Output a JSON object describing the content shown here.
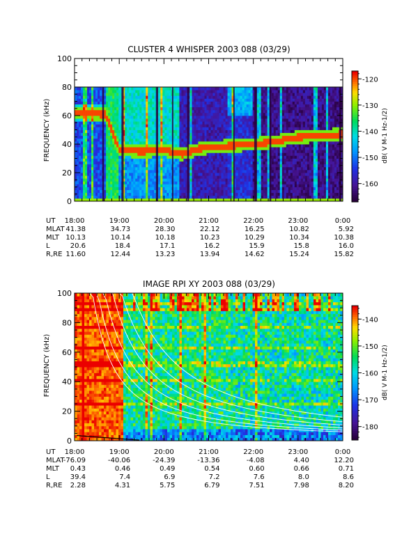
{
  "panels": [
    {
      "title": "CLUSTER 4 WHISPER 2003 088 (03/29)",
      "ylabel": "FREQUENCY (kHz)",
      "colorbar": {
        "label": "dB( V M-1 Hz-1/2)",
        "range": [
          -167,
          -117
        ],
        "ticks": [
          "-120",
          "-130",
          "-140",
          "-150",
          "-160"
        ],
        "tick_values": [
          -120,
          -130,
          -140,
          -150,
          -160
        ],
        "scheme": "rainbow"
      },
      "ephemeris": {
        "rows": [
          {
            "label": "UT",
            "values": [
              "18:00",
              "19:00",
              "20:00",
              "21:00",
              "22:00",
              "23:00",
              "0:00"
            ]
          },
          {
            "label": "MLAT",
            "values": [
              "41.38",
              "34.73",
              "28.30",
              "22.12",
              "16.25",
              "10.82",
              "5.92"
            ]
          },
          {
            "label": "MLT",
            "values": [
              "10.13",
              "10.14",
              "10.18",
              "10.23",
              "10.29",
              "10.34",
              "10.38"
            ]
          },
          {
            "label": "L",
            "values": [
              "20.6",
              "18.4",
              "17.1",
              "16.2",
              "15.9",
              "15.8",
              "16.0"
            ]
          },
          {
            "label": "R,RE",
            "values": [
              "11.60",
              "12.44",
              "13.23",
              "13.94",
              "14.62",
              "15.24",
              "15.82"
            ]
          }
        ]
      }
    },
    {
      "title": "IMAGE RPI XY 2003 088 (03/29)",
      "ylabel": "FREQUENCY (kHz)",
      "colorbar": {
        "label": "dB( V M-1 Hz-1/2)",
        "range": [
          -185,
          -135
        ],
        "ticks": [
          "-140",
          "-150",
          "-160",
          "-170",
          "-180"
        ],
        "tick_values": [
          -140,
          -150,
          -160,
          -170,
          -180
        ],
        "scheme": "rainbow"
      },
      "ephemeris": {
        "rows": [
          {
            "label": "UT",
            "values": [
              "18:00",
              "19:00",
              "20:00",
              "21:00",
              "22:00",
              "23:00",
              "0:00"
            ]
          },
          {
            "label": "MLAT",
            "values": [
              "-76.09",
              "-40.06",
              "-24.39",
              "-13.36",
              "-4.08",
              "4.40",
              "12.20"
            ]
          },
          {
            "label": "MLT",
            "values": [
              "0.43",
              "0.46",
              "0.49",
              "0.54",
              "0.60",
              "0.66",
              "0.71"
            ]
          },
          {
            "label": "L",
            "values": [
              "39.4",
              "7.4",
              "6.9",
              "7.2",
              "7.6",
              "8.0",
              "8.6"
            ]
          },
          {
            "label": "R,RE",
            "values": [
              "2.28",
              "4.31",
              "5.75",
              "6.79",
              "7.51",
              "7.98",
              "8.20"
            ]
          }
        ]
      }
    }
  ],
  "chart_data": [
    {
      "type": "heatmap",
      "title": "CLUSTER 4 WHISPER 2003 088 (03/29)",
      "ylabel": "FREQUENCY (kHz)",
      "xlabel": "UT",
      "x_tick_labels": [
        "18:00",
        "19:00",
        "20:00",
        "21:00",
        "22:00",
        "23:00",
        "0:00"
      ],
      "xlim_hours_ut": [
        18,
        24
      ],
      "ylim": [
        0,
        100
      ],
      "y_ticks": [
        0,
        20,
        40,
        60,
        80,
        100
      ],
      "data_max_frequency_khz": 80,
      "colorbar_range_db": [
        -167,
        -117
      ],
      "features": {
        "emission_line_khz": [
          {
            "t": 18.0,
            "f": 62
          },
          {
            "t": 18.7,
            "f": 61
          },
          {
            "t": 19.0,
            "f": 36
          },
          {
            "t": 19.5,
            "f": 35
          },
          {
            "t": 20.0,
            "f": 36
          },
          {
            "t": 20.4,
            "f": 33
          },
          {
            "t": 20.8,
            "f": 37
          },
          {
            "t": 21.5,
            "f": 39
          },
          {
            "t": 22.0,
            "f": 40
          },
          {
            "t": 22.5,
            "f": 42
          },
          {
            "t": 23.0,
            "f": 45
          },
          {
            "t": 23.5,
            "f": 46
          },
          {
            "t": 24.0,
            "f": 47
          }
        ],
        "data_gaps_hours_ut": [
          [
            18.62,
            18.66
          ],
          [
            19.05,
            19.1
          ],
          [
            19.82,
            19.87
          ],
          [
            20.18,
            20.21
          ],
          [
            20.52,
            20.56
          ],
          [
            21.55,
            21.58
          ],
          [
            22.02,
            22.08
          ],
          [
            22.36,
            22.4
          ],
          [
            23.92,
            23.97
          ]
        ]
      }
    },
    {
      "type": "heatmap",
      "title": "IMAGE RPI XY 2003 088 (03/29)",
      "ylabel": "FREQUENCY (kHz)",
      "xlabel": "UT",
      "x_tick_labels": [
        "18:00",
        "19:00",
        "20:00",
        "21:00",
        "22:00",
        "23:00",
        "0:00"
      ],
      "xlim_hours_ut": [
        18,
        24
      ],
      "ylim": [
        0,
        100
      ],
      "y_ticks": [
        0,
        20,
        40,
        60,
        80,
        100
      ],
      "data_max_frequency_khz": 100,
      "colorbar_range_db": [
        -185,
        -135
      ],
      "features": {
        "white_curves_khz_scale": [
          60,
          75,
          95,
          120,
          150,
          190
        ],
        "black_curve_present": true
      }
    }
  ]
}
